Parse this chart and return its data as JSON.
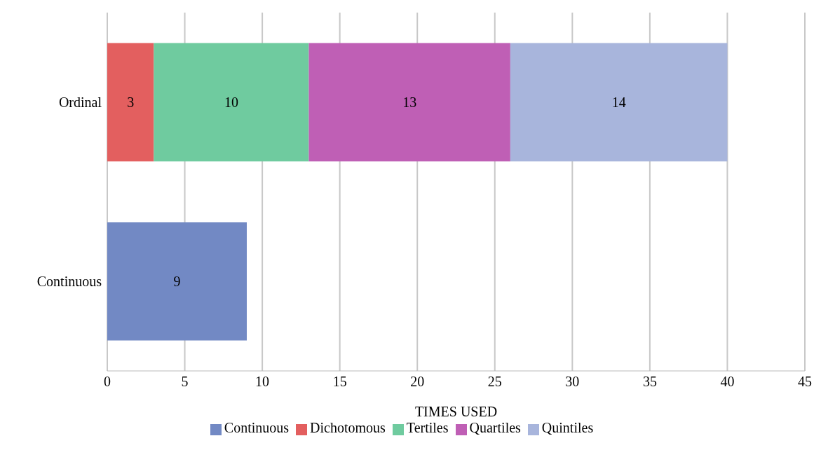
{
  "chart_data": {
    "type": "bar",
    "orientation": "horizontal",
    "stacked": true,
    "categories": [
      "Ordinal",
      "Continuous"
    ],
    "series": [
      {
        "name": "Continuous",
        "color": "#7289c4",
        "values": [
          null,
          9
        ]
      },
      {
        "name": "Dichotomous",
        "color": "#e35f5f",
        "values": [
          3,
          null
        ]
      },
      {
        "name": "Tertiles",
        "color": "#6fcb9f",
        "values": [
          10,
          null
        ]
      },
      {
        "name": "Quartiles",
        "color": "#bf5fb5",
        "values": [
          13,
          null
        ]
      },
      {
        "name": "Quintiles",
        "color": "#a8b5dc",
        "values": [
          14,
          null
        ]
      }
    ],
    "xlabel": "TIMES USED",
    "xlim": [
      0,
      45
    ],
    "xticks": [
      0,
      5,
      10,
      15,
      20,
      25,
      30,
      35,
      40,
      45
    ],
    "grid": "x",
    "legend": "bottom",
    "data_labels": true
  }
}
